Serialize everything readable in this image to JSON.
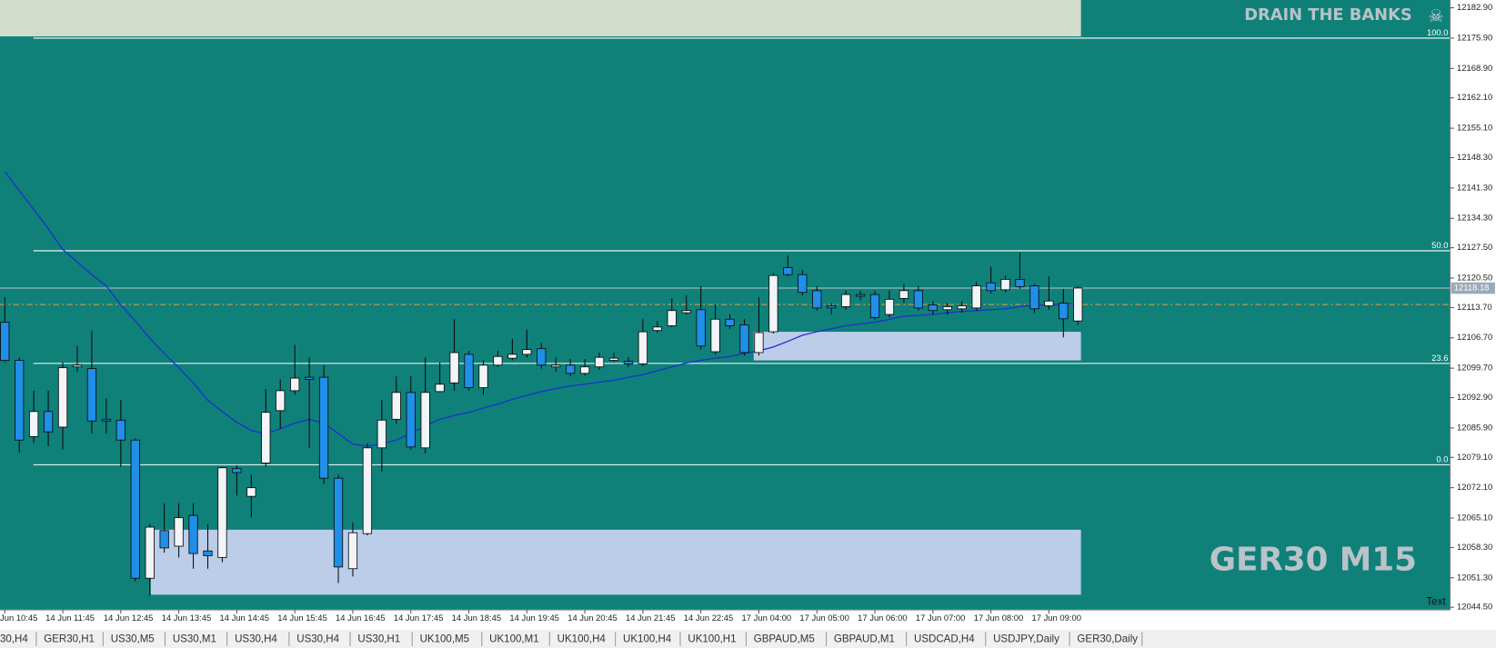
{
  "chart_data": {
    "type": "candlestick",
    "title": "GER30 M15",
    "watermark": "DRAIN THE BANKS",
    "text_label": "Text",
    "colors": {
      "up": "#f2f4f7",
      "down": "#1f8fe8",
      "background": "#0f8179",
      "wick": "#0a0a0a"
    },
    "categories": [
      "Jun 10:45",
      null,
      null,
      null,
      "14 Jun 11:45",
      null,
      null,
      null,
      "14 Jun 12:45",
      null,
      null,
      null,
      "14 Jun 13:45",
      null,
      null,
      null,
      "14 Jun 14:45",
      null,
      null,
      null,
      "14 Jun 15:45",
      null,
      null,
      null,
      "14 Jun 16:45",
      null,
      null,
      null,
      "14 Jun 17:45",
      null,
      null,
      null,
      "14 Jun 18:45",
      null,
      null,
      null,
      "14 Jun 19:45",
      null,
      null,
      null,
      "14 Jun 20:45",
      null,
      null,
      null,
      "14 Jun 21:45",
      null,
      null,
      null,
      "14 Jun 22:45",
      null,
      null,
      null,
      "17 Jun 04:00",
      null,
      null,
      null,
      "17 Jun 05:00",
      null,
      null,
      null,
      "17 Jun 06:00",
      null,
      null,
      null,
      "17 Jun 07:00",
      null,
      null,
      null,
      "17 Jun 08:00",
      null,
      null,
      null,
      "17 Jun 09:00",
      null,
      null
    ],
    "open": [
      12110.3,
      12101.5,
      12083.9,
      12089.7,
      12086.1,
      12100.0,
      12099.6,
      12087.9,
      12087.7,
      12083.1,
      12051.2,
      12062.2,
      12058.6,
      12065.7,
      12057.5,
      12056.0,
      12076.5,
      12070.1,
      12077.8,
      12089.9,
      12094.5,
      12097.6,
      12097.6,
      12074.3,
      12053.4,
      12061.5,
      12081.3,
      12087.9,
      12094.1,
      12081.3,
      12094.3,
      12096.3,
      12102.9,
      12095.2,
      12100.4,
      12102.0,
      12102.9,
      12104.2,
      12100.0,
      12100.4,
      12098.5,
      12100.0,
      12101.5,
      12101.3,
      12100.7,
      12108.4,
      12109.5,
      12112.5,
      12113.2,
      12103.5,
      12111.0,
      12109.7,
      12103.3,
      12108.1,
      12122.9,
      12121.3,
      12117.6,
      12114.1,
      12113.9,
      12116.7,
      12116.7,
      12112.1,
      12115.8,
      12117.6,
      12114.3,
      12113.2,
      12113.4,
      12113.6,
      12119.4,
      12117.8,
      12120.2,
      12118.7,
      12114.1,
      12114.7,
      12110.6
    ],
    "high": [
      12116.1,
      12102.2,
      12094.5,
      12094.5,
      12101.1,
      12104.8,
      12108.4,
      12092.7,
      12092.3,
      12083.5,
      12063.7,
      12068.5,
      12068.5,
      12068.5,
      12063.7,
      12076.9,
      12077.3,
      12075.1,
      12094.9,
      12097.1,
      12105.1,
      12102.2,
      12100.4,
      12075.1,
      12064.1,
      12082.4,
      12092.3,
      12097.8,
      12097.8,
      12102.2,
      12101.1,
      12111.0,
      12103.7,
      12101.5,
      12103.7,
      12106.4,
      12108.6,
      12105.5,
      12102.2,
      12101.8,
      12101.8,
      12103.3,
      12103.3,
      12102.2,
      12111.0,
      12110.6,
      12115.8,
      12116.5,
      12118.7,
      12114.3,
      12112.1,
      12111.0,
      12116.1,
      12121.6,
      12125.7,
      12122.4,
      12118.7,
      12114.7,
      12117.6,
      12117.6,
      12117.6,
      12117.6,
      12119.1,
      12118.7,
      12115.2,
      12114.7,
      12115.2,
      12119.6,
      12123.1,
      12121.1,
      12126.4,
      12119.1,
      12120.9,
      12118.0,
      12118.7
    ],
    "low": [
      12101.1,
      12080.2,
      12082.4,
      12081.7,
      12080.9,
      12098.9,
      12084.6,
      12084.6,
      12076.9,
      12050.5,
      12047.2,
      12057.1,
      12056.0,
      12053.4,
      12053.4,
      12054.9,
      12070.3,
      12065.2,
      12076.9,
      12085.7,
      12093.6,
      12081.3,
      12072.9,
      12050.1,
      12051.6,
      12061.1,
      12075.8,
      12086.8,
      12080.9,
      12080.0,
      12094.1,
      12094.5,
      12094.5,
      12093.6,
      12100.0,
      12101.5,
      12102.2,
      12099.6,
      12098.9,
      12097.8,
      12098.0,
      12099.3,
      12101.1,
      12100.0,
      12100.2,
      12107.9,
      12109.2,
      12112.1,
      12104.0,
      12102.9,
      12108.8,
      12102.6,
      12102.6,
      12107.7,
      12120.9,
      12116.5,
      12113.0,
      12112.1,
      12113.2,
      12115.4,
      12110.8,
      12111.4,
      12114.7,
      12113.0,
      12112.1,
      12112.1,
      12112.5,
      12113.0,
      12116.9,
      12117.2,
      12118.0,
      12112.5,
      12113.2,
      12106.8,
      12109.7
    ],
    "close": [
      12101.5,
      12083.1,
      12089.7,
      12085.0,
      12099.8,
      12100.4,
      12087.5,
      12087.5,
      12083.1,
      12051.2,
      12063.0,
      12058.2,
      12065.2,
      12056.9,
      12056.4,
      12076.7,
      12075.6,
      12072.1,
      12089.5,
      12094.5,
      12097.4,
      12097.1,
      12074.3,
      12053.8,
      12061.7,
      12081.3,
      12087.7,
      12094.1,
      12081.5,
      12094.1,
      12096.0,
      12103.3,
      12095.2,
      12100.4,
      12102.4,
      12102.9,
      12104.0,
      12100.4,
      12100.4,
      12098.5,
      12100.0,
      12102.2,
      12102.0,
      12100.7,
      12108.1,
      12109.2,
      12113.0,
      12113.0,
      12104.8,
      12111.0,
      12109.5,
      12103.3,
      12107.9,
      12121.1,
      12121.3,
      12117.2,
      12113.6,
      12113.6,
      12116.7,
      12116.3,
      12111.4,
      12115.6,
      12117.6,
      12113.6,
      12113.0,
      12113.9,
      12114.1,
      12118.7,
      12117.6,
      12120.2,
      12118.5,
      12113.4,
      12115.2,
      12111.1,
      12118.2
    ],
    "ma": {
      "color": "#1b2fd0",
      "values": [
        12145.1,
        12140.7,
        12136.3,
        12131.9,
        12127.1,
        12124.2,
        12121.3,
        12118.7,
        12114.3,
        12110.6,
        12106.6,
        12103.1,
        12099.8,
        12096.3,
        12092.3,
        12089.7,
        12087.2,
        12085.3,
        12084.6,
        12085.7,
        12087.0,
        12087.9,
        12087.0,
        12084.6,
        12082.2,
        12081.7,
        12082.2,
        12083.1,
        12084.6,
        12086.4,
        12087.9,
        12088.8,
        12089.5,
        12090.5,
        12091.4,
        12092.5,
        12093.4,
        12094.3,
        12095.0,
        12095.6,
        12096.0,
        12096.5,
        12096.9,
        12097.6,
        12098.2,
        12099.1,
        12100.0,
        12100.9,
        12101.5,
        12102.0,
        12102.4,
        12103.1,
        12103.7,
        12104.6,
        12105.9,
        12107.3,
        12108.1,
        12108.8,
        12109.5,
        12109.9,
        12110.3,
        12111.0,
        12111.7,
        12111.9,
        12112.1,
        12112.5,
        12112.8,
        12113.0,
        12113.2,
        12113.4,
        12113.9,
        12114.3,
        12114.3,
        12114.5,
        12114.5
      ]
    },
    "ylim": [
      12043.9,
      12184.7
    ],
    "yticks": [
      {
        "value": 12182.9,
        "label": "12182.90"
      },
      {
        "value": 12175.9,
        "label": "12175.90"
      },
      {
        "value": 12168.9,
        "label": "12168.90"
      },
      {
        "value": 12162.1,
        "label": "12162.10"
      },
      {
        "value": 12155.1,
        "label": "12155.10"
      },
      {
        "value": 12148.3,
        "label": "12148.30"
      },
      {
        "value": 12141.3,
        "label": "12141.30"
      },
      {
        "value": 12134.3,
        "label": "12134.30"
      },
      {
        "value": 12127.5,
        "label": "12127.50"
      },
      {
        "value": 12120.5,
        "label": "12120.50"
      },
      {
        "value": 12113.7,
        "label": "12113.70"
      },
      {
        "value": 12106.7,
        "label": "12106.70"
      },
      {
        "value": 12099.7,
        "label": "12099.70"
      },
      {
        "value": 12092.9,
        "label": "12092.90"
      },
      {
        "value": 12085.9,
        "label": "12085.90"
      },
      {
        "value": 12079.1,
        "label": "12079.10"
      },
      {
        "value": 12072.1,
        "label": "12072.10"
      },
      {
        "value": 12065.1,
        "label": "12065.10"
      },
      {
        "value": 12058.3,
        "label": "12058.30"
      },
      {
        "value": 12051.3,
        "label": "12051.30"
      },
      {
        "value": 12044.5,
        "label": "12044.50"
      }
    ],
    "fib_levels": [
      {
        "label": "100.0",
        "value": 12175.9
      },
      {
        "label": "50.0",
        "value": 12126.8
      },
      {
        "label": "23.6",
        "value": 12100.8
      },
      {
        "label": "0.0",
        "value": 12077.4
      }
    ],
    "zones": [
      {
        "top": 12184.7,
        "bottom": 12176.3,
        "color": "#d1dccb"
      },
      {
        "top": 12108.1,
        "bottom": 12101.5,
        "color": "#bccde9"
      },
      {
        "top": 12062.4,
        "bottom": 12047.4,
        "color": "#bccde9"
      }
    ],
    "dashed_level": 12114.4,
    "current_price": 12118.18
  },
  "tabs": [
    "30,H4",
    "GER30,H1",
    "US30,M5",
    "US30,M1",
    "US30,H4",
    "US30,H4",
    "US30,H1",
    "UK100,M5",
    "UK100,M1",
    "UK100,H4",
    "UK100,H4",
    "UK100,H1",
    "GBPAUD,M5",
    "GBPAUD,M1",
    "USDCAD,H4",
    "USDJPY,Daily",
    "GER30,Daily"
  ]
}
